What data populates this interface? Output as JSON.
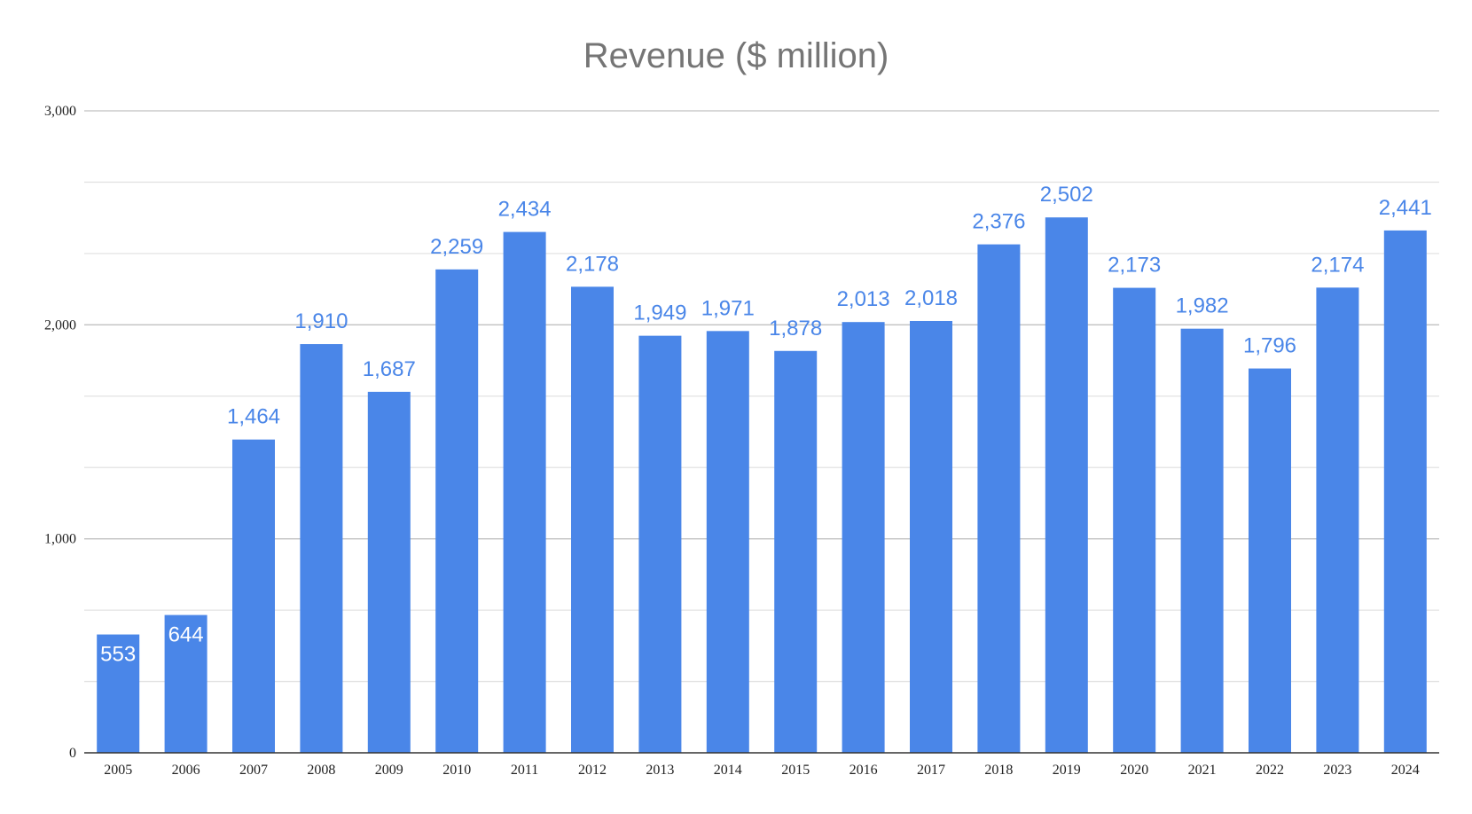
{
  "chart_data": {
    "type": "bar",
    "title": "Revenue ($ million)",
    "xlabel": "",
    "ylabel": "",
    "categories": [
      "2005",
      "2006",
      "2007",
      "2008",
      "2009",
      "2010",
      "2011",
      "2012",
      "2013",
      "2014",
      "2015",
      "2016",
      "2017",
      "2018",
      "2019",
      "2020",
      "2021",
      "2022",
      "2023",
      "2024"
    ],
    "values": [
      553,
      644,
      1464,
      1910,
      1687,
      2259,
      2434,
      2178,
      1949,
      1971,
      1878,
      2013,
      2018,
      2376,
      2502,
      2173,
      1982,
      1796,
      2174,
      2441
    ],
    "value_labels": [
      "553",
      "644",
      "1,464",
      "1,910",
      "1,687",
      "2,259",
      "2,434",
      "2,178",
      "1,949",
      "1,971",
      "1,878",
      "2,013",
      "2,018",
      "2,376",
      "2,502",
      "2,173",
      "1,982",
      "1,796",
      "2,174",
      "2,441"
    ],
    "ylim": [
      0,
      3000
    ],
    "y_ticks": [
      0,
      1000,
      2000,
      3000
    ],
    "y_tick_labels": [
      "0",
      "1,000",
      "2,000",
      "3,000"
    ],
    "minor_gridlines": true,
    "grid": true,
    "legend": "none",
    "colors": {
      "bar": "#4a86e8",
      "label_outside": "#4a86e8",
      "label_inside": "#ffffff",
      "title": "#757575",
      "major_grid": "#c0c0c0",
      "minor_grid": "#e3e3e3",
      "axis": "#333333"
    }
  }
}
